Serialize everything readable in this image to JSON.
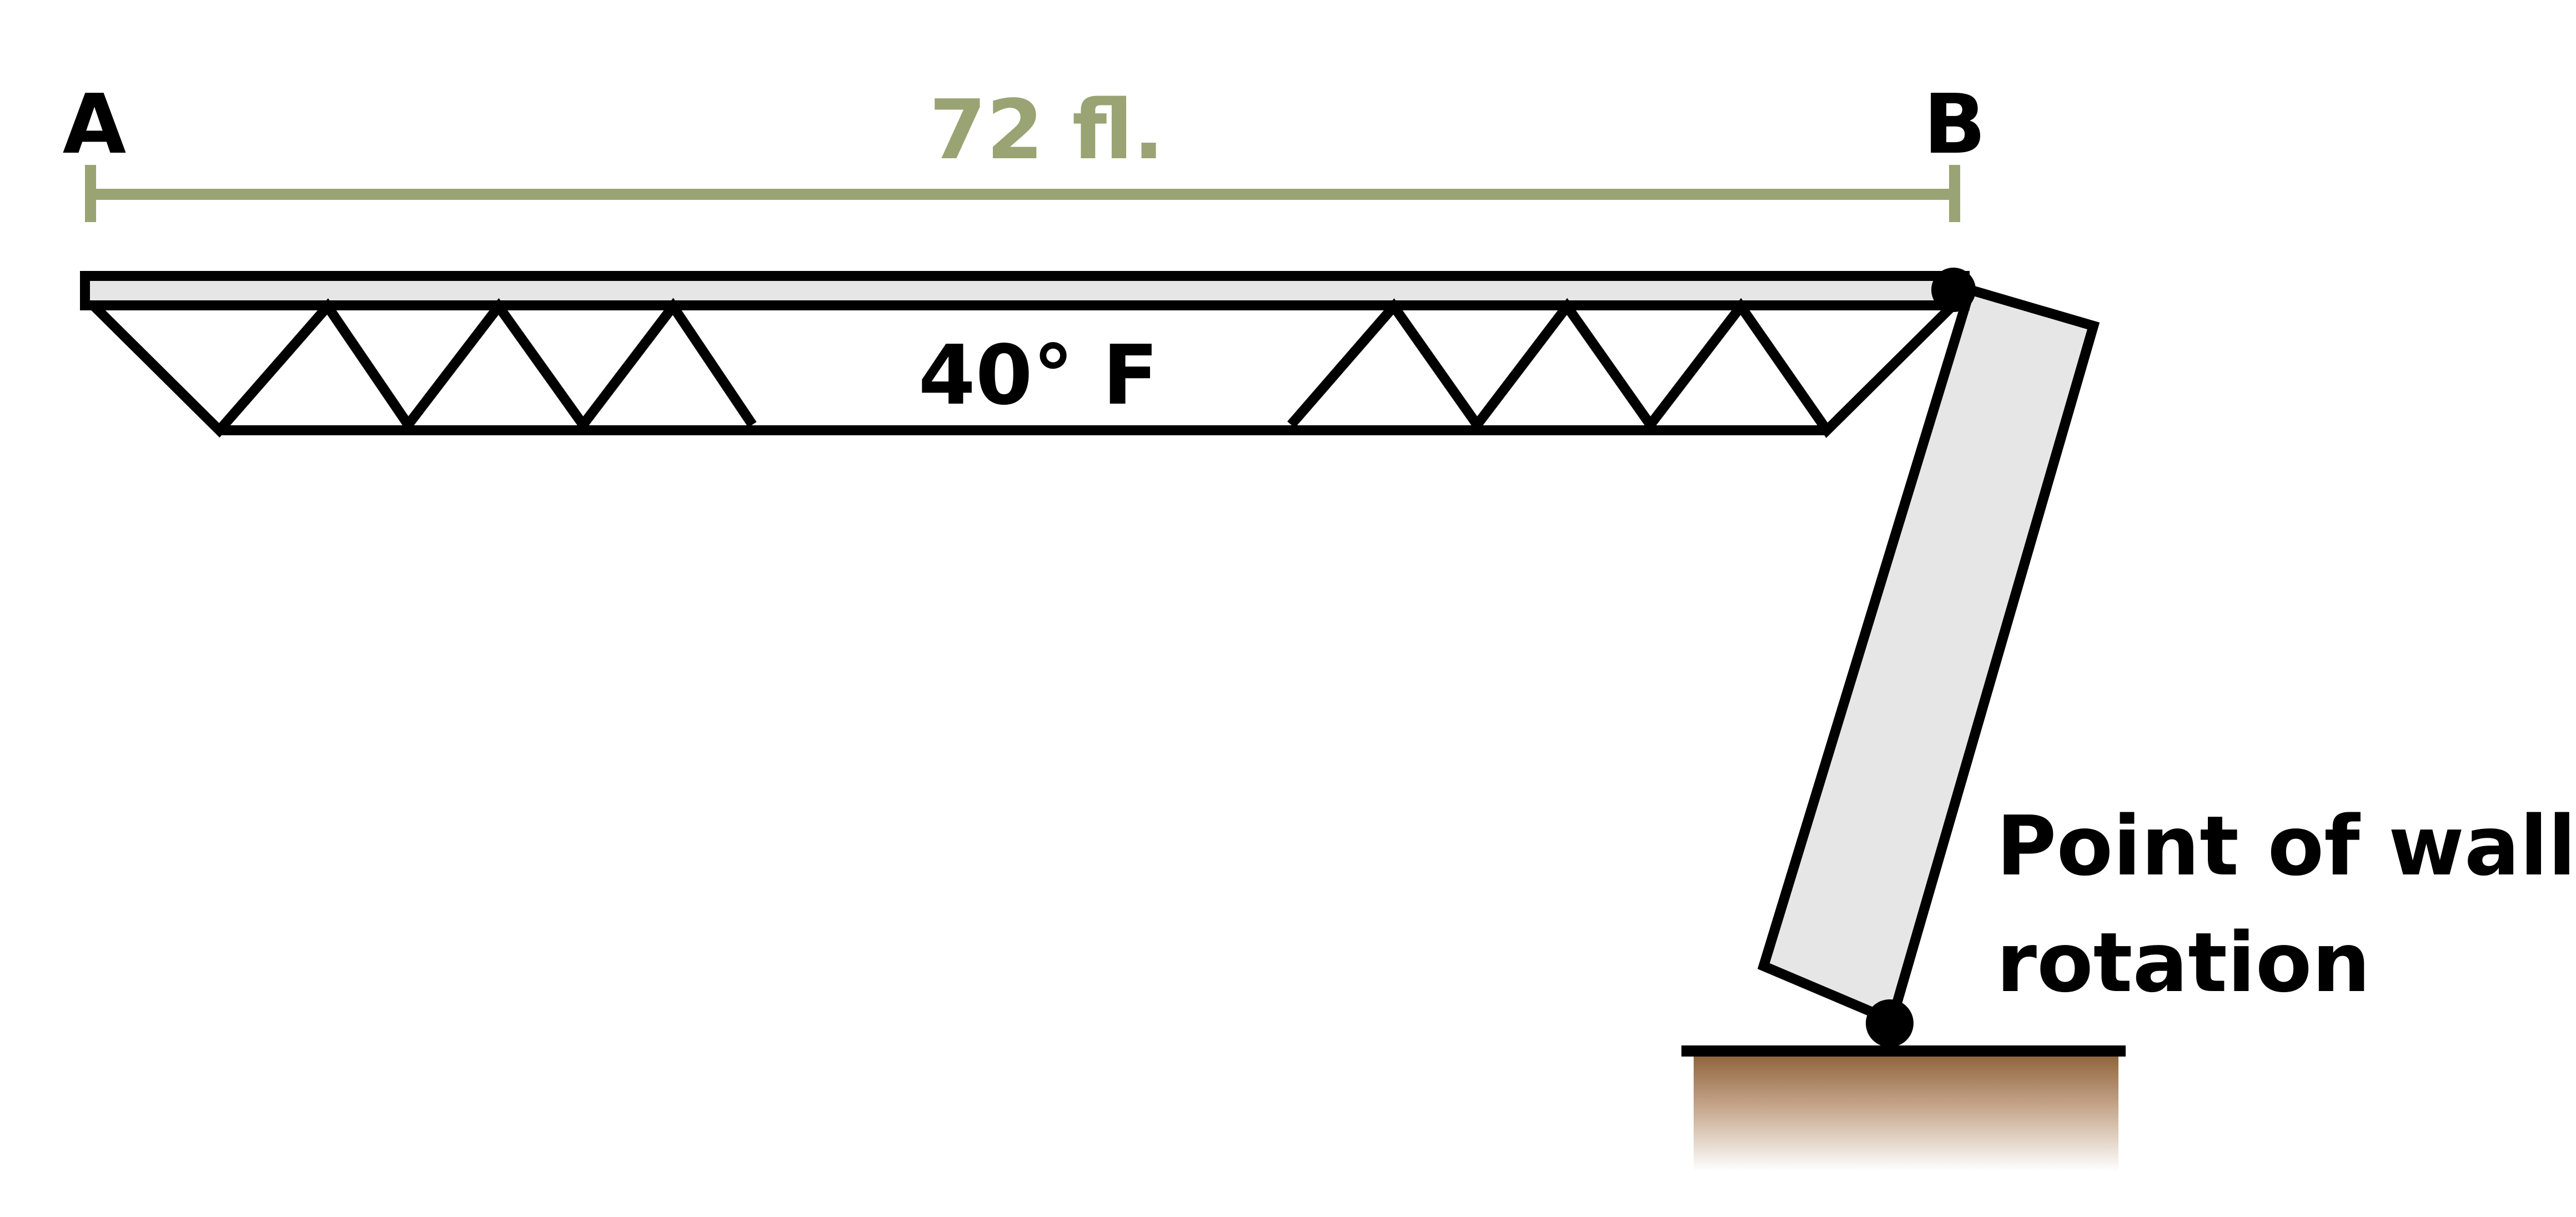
{
  "labels": {
    "point_a": "A",
    "point_b": "B",
    "span": "72 fl.",
    "temperature": "40° F",
    "rotation_line1": "Point of wall",
    "rotation_line2": "rotation"
  },
  "colors": {
    "dimension_line": "#9aa373",
    "stroke": "#000000",
    "member_fill": "#e6e6e6",
    "ground_top": "#8c6037",
    "background": "#ffffff"
  }
}
